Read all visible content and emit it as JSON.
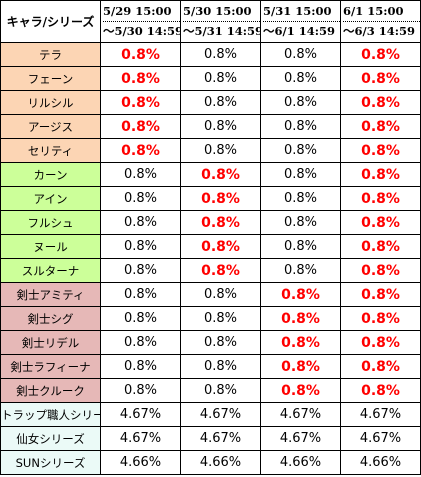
{
  "header": {
    "name_label": "キャラ/シリーズ",
    "periods": [
      {
        "start": "5/29 15:00",
        "end": "～5/30 14:59"
      },
      {
        "start": "5/30 15:00",
        "end": "～5/31 14:59"
      },
      {
        "start": "5/31 15:00",
        "end": "～6/1 14:59"
      },
      {
        "start": "6/1 15:00",
        "end": "～6/3 14:59"
      }
    ]
  },
  "colors": {
    "group_orange": "#fcd5b4",
    "group_green": "#ccff99",
    "group_pink": "#e6b8b7",
    "group_summary": "#ebfaf7",
    "highlight_text": "#ff0000"
  },
  "rows": [
    {
      "name": "テラ",
      "group": "orange",
      "values": [
        "0.8%",
        "0.8%",
        "0.8%",
        "0.8%"
      ],
      "highlight": [
        true,
        false,
        false,
        true
      ]
    },
    {
      "name": "フェーン",
      "group": "orange",
      "values": [
        "0.8%",
        "0.8%",
        "0.8%",
        "0.8%"
      ],
      "highlight": [
        true,
        false,
        false,
        true
      ]
    },
    {
      "name": "リルシル",
      "group": "orange",
      "values": [
        "0.8%",
        "0.8%",
        "0.8%",
        "0.8%"
      ],
      "highlight": [
        true,
        false,
        false,
        true
      ]
    },
    {
      "name": "アージス",
      "group": "orange",
      "values": [
        "0.8%",
        "0.8%",
        "0.8%",
        "0.8%"
      ],
      "highlight": [
        true,
        false,
        false,
        true
      ]
    },
    {
      "name": "セリティ",
      "group": "orange",
      "values": [
        "0.8%",
        "0.8%",
        "0.8%",
        "0.8%"
      ],
      "highlight": [
        true,
        false,
        false,
        true
      ]
    },
    {
      "name": "カーン",
      "group": "green",
      "values": [
        "0.8%",
        "0.8%",
        "0.8%",
        "0.8%"
      ],
      "highlight": [
        false,
        true,
        false,
        true
      ]
    },
    {
      "name": "アイン",
      "group": "green",
      "values": [
        "0.8%",
        "0.8%",
        "0.8%",
        "0.8%"
      ],
      "highlight": [
        false,
        true,
        false,
        true
      ]
    },
    {
      "name": "フルシュ",
      "group": "green",
      "values": [
        "0.8%",
        "0.8%",
        "0.8%",
        "0.8%"
      ],
      "highlight": [
        false,
        true,
        false,
        true
      ]
    },
    {
      "name": "ヌール",
      "group": "green",
      "values": [
        "0.8%",
        "0.8%",
        "0.8%",
        "0.8%"
      ],
      "highlight": [
        false,
        true,
        false,
        true
      ]
    },
    {
      "name": "スルターナ",
      "group": "green",
      "values": [
        "0.8%",
        "0.8%",
        "0.8%",
        "0.8%"
      ],
      "highlight": [
        false,
        true,
        false,
        true
      ]
    },
    {
      "name": "剣士アミティ",
      "group": "pink",
      "values": [
        "0.8%",
        "0.8%",
        "0.8%",
        "0.8%"
      ],
      "highlight": [
        false,
        false,
        true,
        true
      ]
    },
    {
      "name": "剣士シグ",
      "group": "pink",
      "values": [
        "0.8%",
        "0.8%",
        "0.8%",
        "0.8%"
      ],
      "highlight": [
        false,
        false,
        true,
        true
      ]
    },
    {
      "name": "剣士リデル",
      "group": "pink",
      "values": [
        "0.8%",
        "0.8%",
        "0.8%",
        "0.8%"
      ],
      "highlight": [
        false,
        false,
        true,
        true
      ]
    },
    {
      "name": "剣士ラフィーナ",
      "group": "pink",
      "values": [
        "0.8%",
        "0.8%",
        "0.8%",
        "0.8%"
      ],
      "highlight": [
        false,
        false,
        true,
        true
      ]
    },
    {
      "name": "剣士クルーク",
      "group": "pink",
      "values": [
        "0.8%",
        "0.8%",
        "0.8%",
        "0.8%"
      ],
      "highlight": [
        false,
        false,
        true,
        true
      ]
    },
    {
      "name": "トラップ職人シリーズ",
      "group": "summary",
      "values": [
        "4.67%",
        "4.67%",
        "4.67%",
        "4.67%"
      ],
      "highlight": [
        false,
        false,
        false,
        false
      ]
    },
    {
      "name": "仙女シリーズ",
      "group": "summary",
      "values": [
        "4.67%",
        "4.67%",
        "4.67%",
        "4.67%"
      ],
      "highlight": [
        false,
        false,
        false,
        false
      ]
    },
    {
      "name": "SUNシリーズ",
      "group": "summary",
      "values": [
        "4.66%",
        "4.66%",
        "4.66%",
        "4.66%"
      ],
      "highlight": [
        false,
        false,
        false,
        false
      ]
    }
  ]
}
